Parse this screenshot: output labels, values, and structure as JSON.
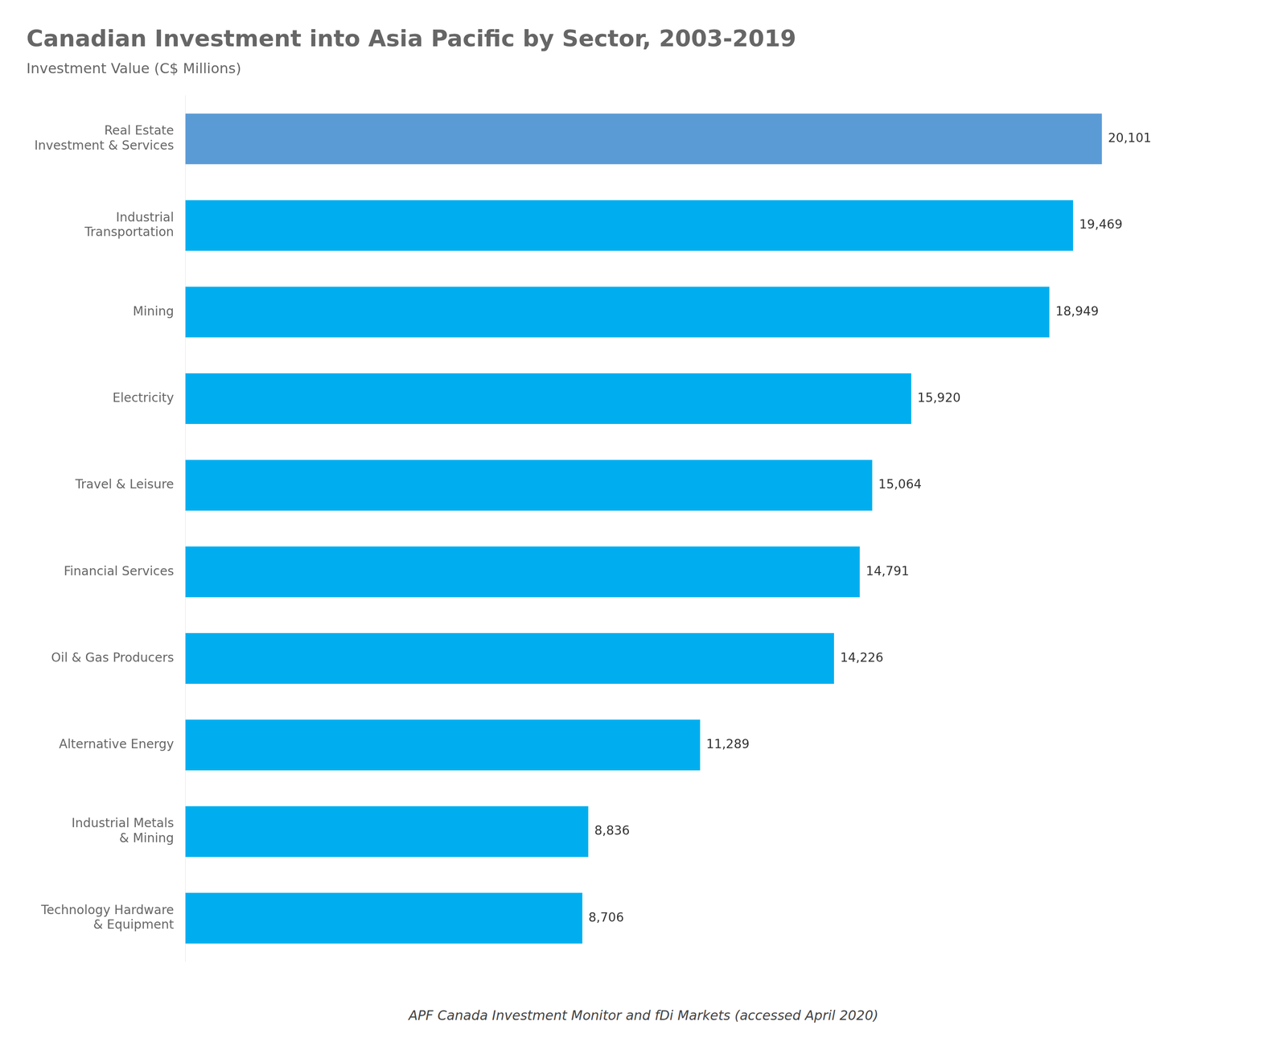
{
  "chart_data": {
    "type": "bar",
    "orientation": "horizontal",
    "title": "Canadian Investment into Asia Pacific by Sector, 2003-2019",
    "subtitle": "Investment Value (C$ Millions)",
    "footer": "APF Canada Investment Monitor and fDi Markets (accessed April 2020)",
    "categories": [
      "Technology Hardware\n& Equipment",
      "Industrial Metals\n& Mining",
      "Alternative Energy",
      "Oil & Gas Producers",
      "Financial Services",
      "Travel & Leisure",
      "Electricity",
      "Mining",
      "Industrial\nTransportation",
      "Real Estate\nInvestment & Services"
    ],
    "values": [
      8706,
      8836,
      11289,
      14226,
      14791,
      15064,
      15920,
      18949,
      19469,
      20101
    ],
    "value_labels": [
      "8,706",
      "8,836",
      "11,289",
      "14,226",
      "14,791",
      "15,064",
      "15,920",
      "18,949",
      "19,469",
      "20,101"
    ],
    "colors": [
      "#00AEEF",
      "#00AEEF",
      "#00AEEF",
      "#00AEEF",
      "#00AEEF",
      "#00AEEF",
      "#00AEEF",
      "#00AEEF",
      "#00AEEF",
      "#5B9BD5"
    ],
    "xlim": [
      0,
      23000
    ],
    "grid": false,
    "data_labels": true,
    "tick_labels": "y"
  }
}
